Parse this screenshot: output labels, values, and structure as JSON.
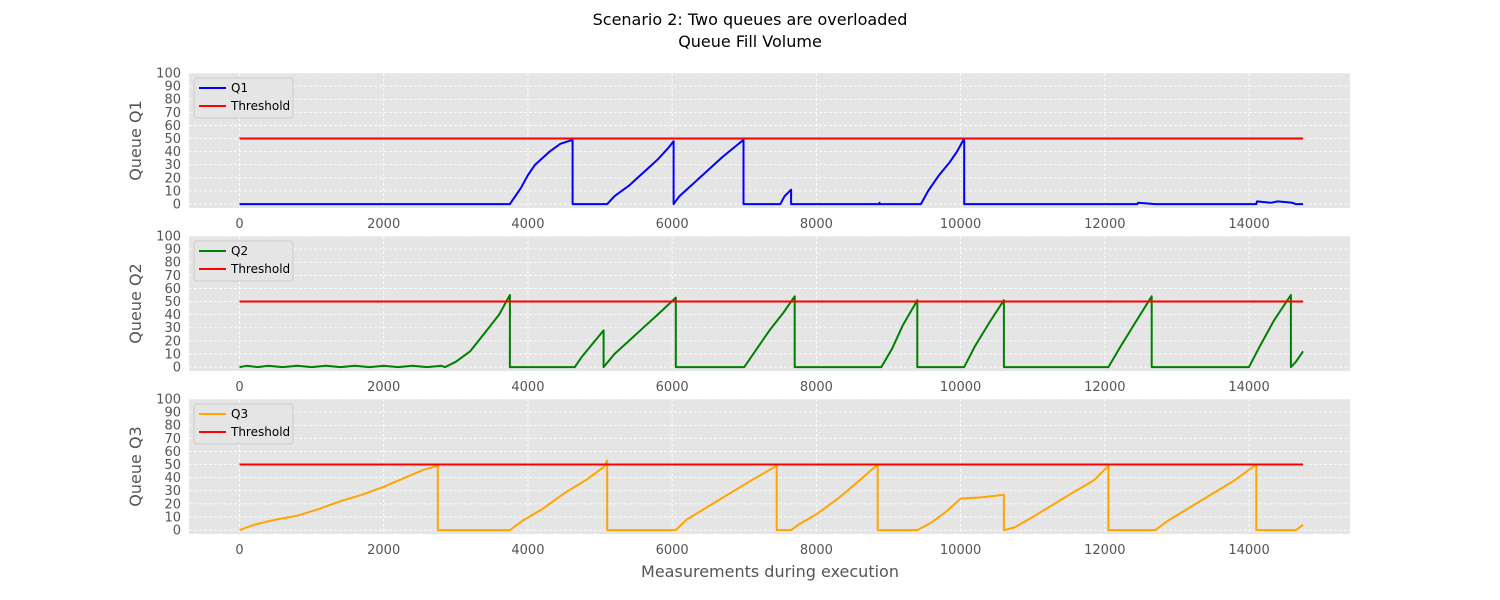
{
  "chart_data": {
    "type": "line",
    "title": "Scenario 2: Two queues are overloaded",
    "subtitle": "Queue Fill Volume",
    "xlabel": "Measurements during execution",
    "xlim": [
      -700,
      15400
    ],
    "xticks": [
      0,
      2000,
      4000,
      6000,
      8000,
      10000,
      12000,
      14000
    ],
    "ylim": [
      -3,
      100
    ],
    "yticks": [
      0,
      10,
      20,
      30,
      40,
      50,
      60,
      70,
      80,
      90,
      100
    ],
    "grid": true,
    "legend_position": "upper-left",
    "colors": {
      "background": "#e5e5e5",
      "grid": "#ffffff",
      "threshold": "#ff0000",
      "q1": "#0000ff",
      "q2": "#008000",
      "q3": "#ffa500"
    },
    "panels": [
      {
        "ylabel": "Queue Q1",
        "series": [
          {
            "name": "Q1",
            "color": "#0000ff",
            "points": [
              [
                0,
                0
              ],
              [
                3750,
                0
              ],
              [
                3900,
                12
              ],
              [
                4000,
                22
              ],
              [
                4100,
                30
              ],
              [
                4300,
                40
              ],
              [
                4450,
                46
              ],
              [
                4620,
                49
              ],
              [
                4620,
                0
              ],
              [
                5100,
                0
              ],
              [
                5200,
                6
              ],
              [
                5400,
                14
              ],
              [
                5600,
                24
              ],
              [
                5800,
                34
              ],
              [
                5950,
                43
              ],
              [
                6020,
                48
              ],
              [
                6020,
                0
              ],
              [
                6100,
                6
              ],
              [
                6300,
                16
              ],
              [
                6500,
                26
              ],
              [
                6700,
                36
              ],
              [
                6900,
                45
              ],
              [
                6990,
                49
              ],
              [
                6990,
                0
              ],
              [
                7500,
                0
              ],
              [
                7560,
                6
              ],
              [
                7650,
                11
              ],
              [
                7650,
                0
              ],
              [
                8870,
                0
              ],
              [
                8875,
                1
              ],
              [
                8880,
                0
              ],
              [
                9450,
                0
              ],
              [
                9550,
                10
              ],
              [
                9700,
                22
              ],
              [
                9850,
                32
              ],
              [
                9950,
                40
              ],
              [
                10050,
                50
              ],
              [
                10050,
                0
              ],
              [
                12450,
                0
              ],
              [
                12460,
                1
              ],
              [
                12700,
                0
              ],
              [
                14100,
                0
              ],
              [
                14110,
                2
              ],
              [
                14300,
                1
              ],
              [
                14400,
                2
              ],
              [
                14600,
                1
              ],
              [
                14650,
                0
              ],
              [
                14750,
                0
              ]
            ]
          },
          {
            "name": "Threshold",
            "color": "#ff0000",
            "points": [
              [
                0,
                50
              ],
              [
                14750,
                50
              ]
            ]
          }
        ]
      },
      {
        "ylabel": "Queue Q2",
        "series": [
          {
            "name": "Q2",
            "color": "#008000",
            "points": [
              [
                0,
                0
              ],
              [
                100,
                1
              ],
              [
                250,
                0
              ],
              [
                400,
                1
              ],
              [
                600,
                0
              ],
              [
                800,
                1
              ],
              [
                1000,
                0
              ],
              [
                1200,
                1
              ],
              [
                1400,
                0
              ],
              [
                1600,
                1
              ],
              [
                1800,
                0
              ],
              [
                2000,
                1
              ],
              [
                2200,
                0
              ],
              [
                2400,
                1
              ],
              [
                2600,
                0
              ],
              [
                2800,
                1
              ],
              [
                2850,
                0
              ],
              [
                3000,
                4
              ],
              [
                3200,
                12
              ],
              [
                3400,
                26
              ],
              [
                3600,
                40
              ],
              [
                3750,
                55
              ],
              [
                3750,
                0
              ],
              [
                4650,
                0
              ],
              [
                4750,
                8
              ],
              [
                4900,
                18
              ],
              [
                5050,
                28
              ],
              [
                5050,
                0
              ],
              [
                5200,
                10
              ],
              [
                5400,
                20
              ],
              [
                5600,
                30
              ],
              [
                5800,
                40
              ],
              [
                6050,
                53
              ],
              [
                6050,
                0
              ],
              [
                7000,
                0
              ],
              [
                7150,
                12
              ],
              [
                7350,
                28
              ],
              [
                7550,
                42
              ],
              [
                7700,
                54
              ],
              [
                7700,
                0
              ],
              [
                8900,
                0
              ],
              [
                9050,
                14
              ],
              [
                9200,
                32
              ],
              [
                9400,
                51
              ],
              [
                9400,
                0
              ],
              [
                10050,
                0
              ],
              [
                10200,
                16
              ],
              [
                10400,
                34
              ],
              [
                10600,
                51
              ],
              [
                10600,
                0
              ],
              [
                12050,
                0
              ],
              [
                12200,
                14
              ],
              [
                12400,
                32
              ],
              [
                12650,
                54
              ],
              [
                12650,
                0
              ],
              [
                14000,
                0
              ],
              [
                14150,
                16
              ],
              [
                14350,
                36
              ],
              [
                14580,
                55
              ],
              [
                14580,
                0
              ],
              [
                14650,
                4
              ],
              [
                14750,
                12
              ]
            ]
          },
          {
            "name": "Threshold",
            "color": "#ff0000",
            "points": [
              [
                0,
                50
              ],
              [
                14750,
                50
              ]
            ]
          }
        ]
      },
      {
        "ylabel": "Queue Q3",
        "series": [
          {
            "name": "Q3",
            "color": "#ffa500",
            "points": [
              [
                0,
                0
              ],
              [
                200,
                4
              ],
              [
                500,
                8
              ],
              [
                800,
                11
              ],
              [
                1100,
                16
              ],
              [
                1400,
                22
              ],
              [
                1700,
                27
              ],
              [
                2000,
                33
              ],
              [
                2300,
                40
              ],
              [
                2550,
                46
              ],
              [
                2750,
                49
              ],
              [
                2750,
                0
              ],
              [
                3750,
                0
              ],
              [
                3950,
                8
              ],
              [
                4200,
                16
              ],
              [
                4500,
                28
              ],
              [
                4800,
                38
              ],
              [
                5050,
                48
              ],
              [
                5100,
                53
              ],
              [
                5100,
                0
              ],
              [
                6050,
                0
              ],
              [
                6200,
                8
              ],
              [
                6500,
                18
              ],
              [
                6800,
                28
              ],
              [
                7100,
                38
              ],
              [
                7450,
                49
              ],
              [
                7450,
                0
              ],
              [
                7650,
                0
              ],
              [
                7750,
                4
              ],
              [
                8000,
                12
              ],
              [
                8300,
                24
              ],
              [
                8600,
                38
              ],
              [
                8850,
                50
              ],
              [
                8850,
                0
              ],
              [
                9400,
                0
              ],
              [
                9600,
                6
              ],
              [
                9800,
                14
              ],
              [
                10000,
                24
              ],
              [
                10300,
                25
              ],
              [
                10600,
                27
              ],
              [
                10600,
                0
              ],
              [
                10750,
                2
              ],
              [
                11000,
                10
              ],
              [
                11300,
                20
              ],
              [
                11600,
                30
              ],
              [
                11850,
                38
              ],
              [
                12050,
                49
              ],
              [
                12050,
                0
              ],
              [
                12700,
                0
              ],
              [
                12900,
                8
              ],
              [
                13200,
                18
              ],
              [
                13500,
                28
              ],
              [
                13800,
                38
              ],
              [
                14100,
                50
              ],
              [
                14100,
                0
              ],
              [
                14650,
                0
              ],
              [
                14750,
                4
              ]
            ]
          },
          {
            "name": "Threshold",
            "color": "#ff0000",
            "points": [
              [
                0,
                50
              ],
              [
                14750,
                50
              ]
            ]
          }
        ]
      }
    ]
  }
}
